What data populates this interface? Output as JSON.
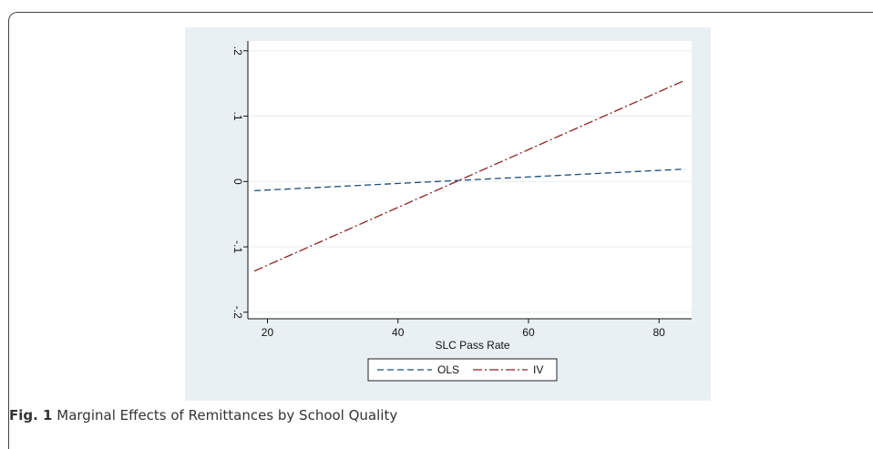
{
  "caption": {
    "label": "Fig. 1",
    "text": "Marginal Effects of Remittances by School Quality"
  },
  "colors": {
    "panel_bg": "#e9f0f4",
    "plot_bg": "#ffffff",
    "grid": "#e9f0f4",
    "ols": "#1f4e79",
    "iv": "#8b2323"
  },
  "chart_data": {
    "type": "line",
    "title": "",
    "xlabel": "SLC Pass Rate",
    "ylabel": "",
    "xlim": [
      17,
      85
    ],
    "ylim": [
      -0.21,
      0.215
    ],
    "xticks": [
      20,
      40,
      60,
      80
    ],
    "xtick_labels": [
      "20",
      "40",
      "60",
      "80"
    ],
    "yticks": [
      -0.2,
      -0.1,
      0,
      0.1,
      0.2
    ],
    "ytick_labels": [
      "-.2",
      "-.1",
      "0",
      ".1",
      ".2"
    ],
    "grid": true,
    "legend_position": "bottom",
    "series": [
      {
        "name": "OLS",
        "style": "dashed",
        "x": [
          18,
          84
        ],
        "y": [
          -0.014,
          0.019
        ]
      },
      {
        "name": "IV",
        "style": "dash-dot",
        "x": [
          18,
          84
        ],
        "y": [
          -0.137,
          0.155
        ]
      }
    ]
  }
}
